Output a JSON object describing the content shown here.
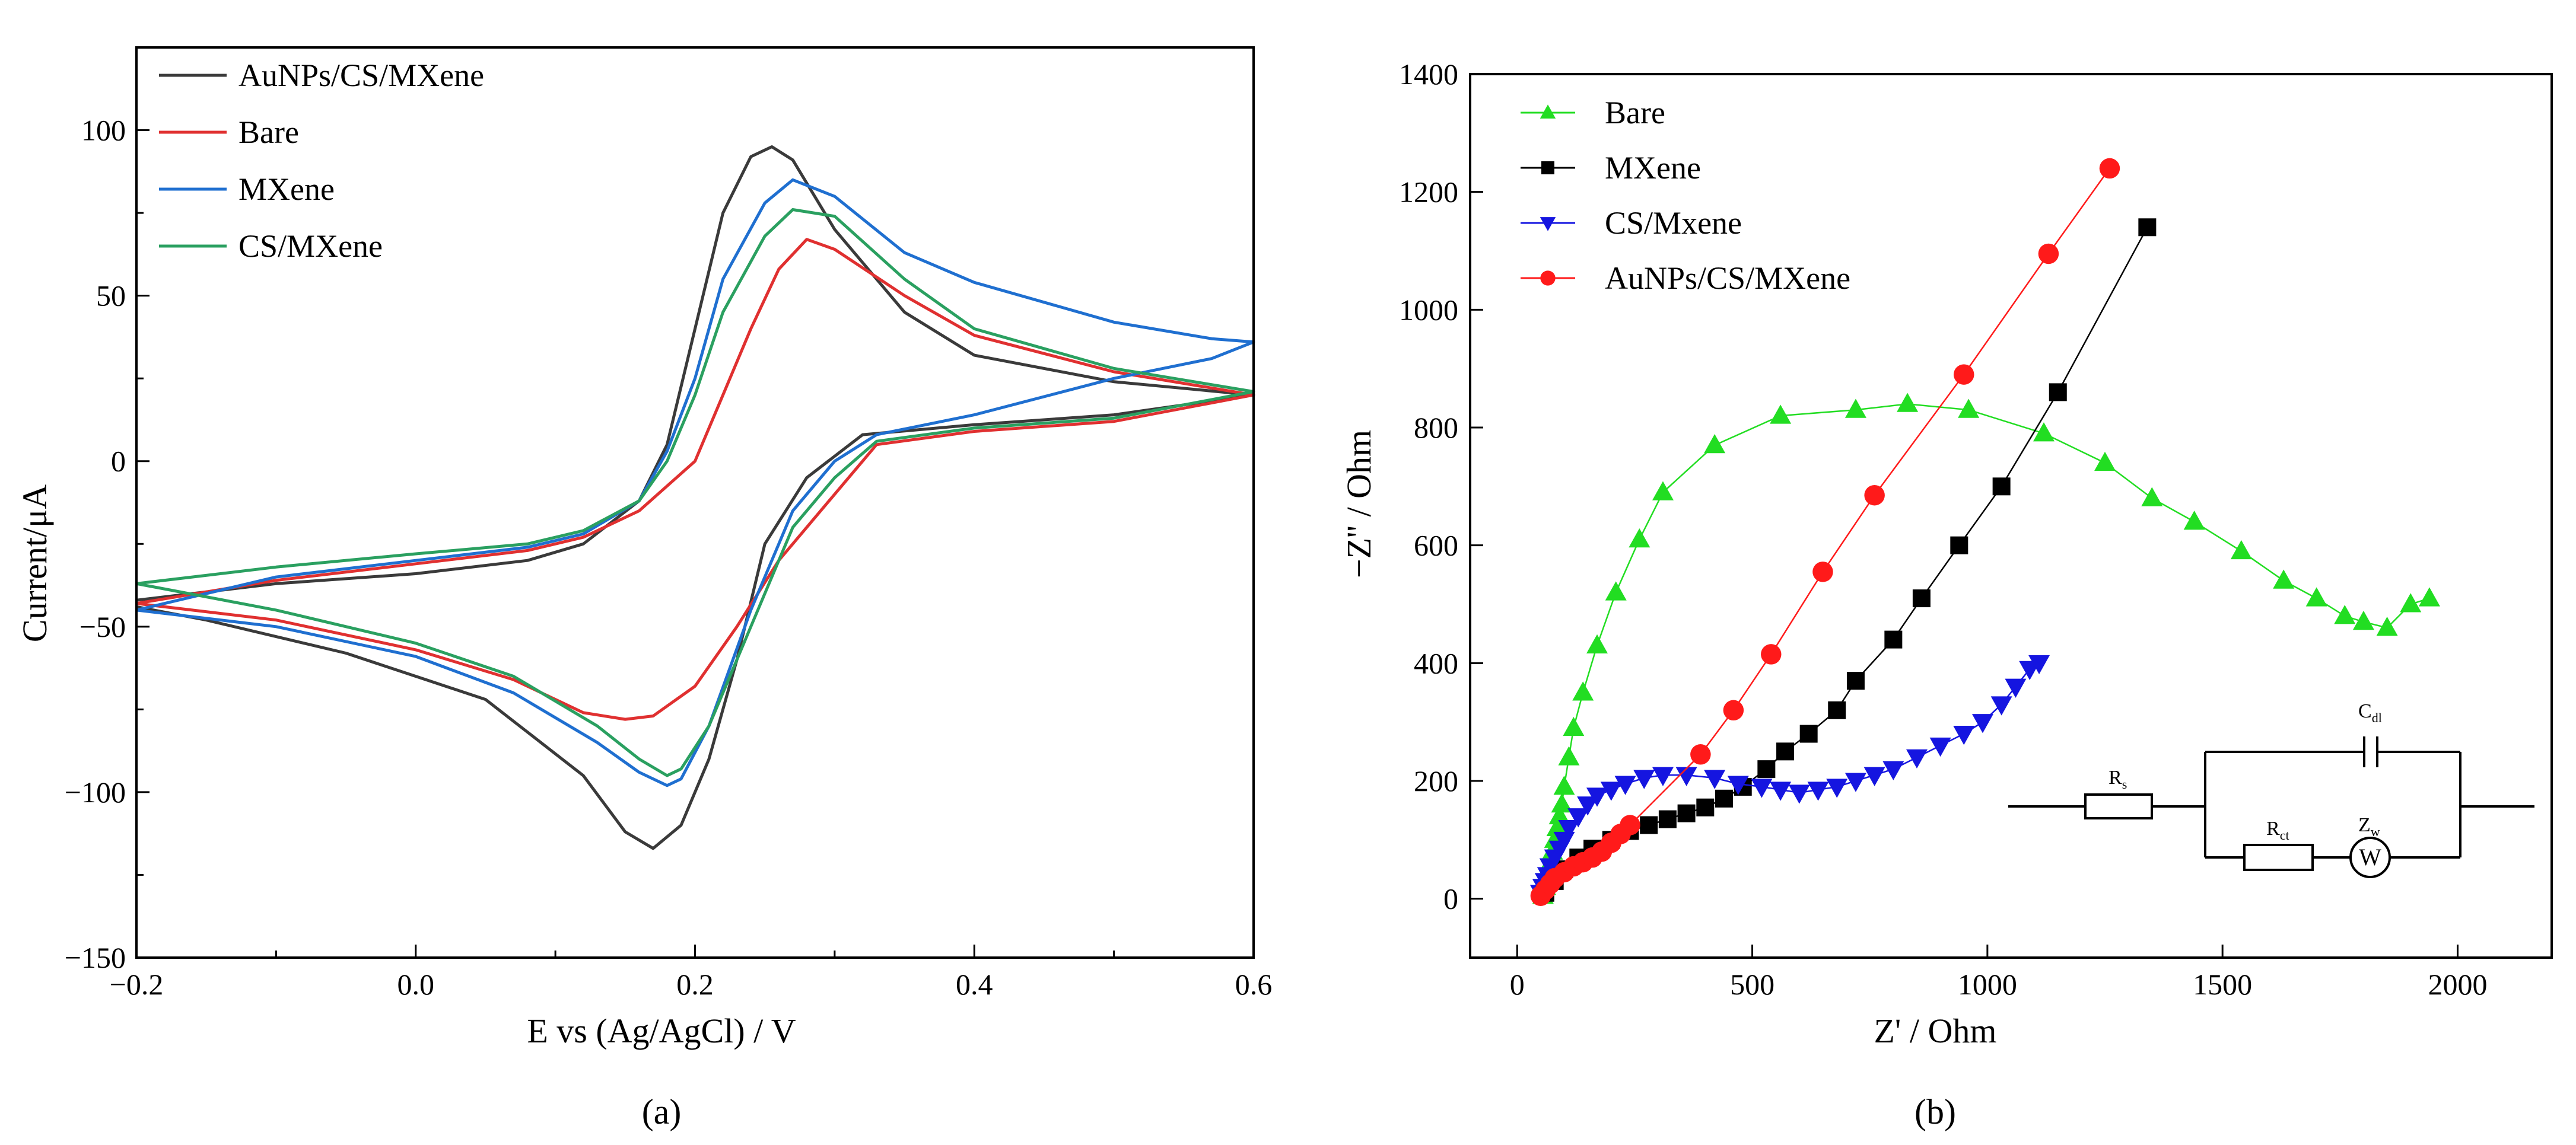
{
  "panel_labels": {
    "a": "(a)",
    "b": "(b)"
  },
  "chart_data": [
    {
      "type": "line",
      "title": "",
      "xlabel": "E vs (Ag/AgCl) / V",
      "ylabel": "Current/μA",
      "xlim": [
        -0.2,
        0.6
      ],
      "ylim": [
        -150,
        125
      ],
      "xticks": [
        -0.2,
        0.0,
        0.2,
        0.4,
        0.6
      ],
      "xtick_labels": [
        "−0.2",
        "0.0",
        "0.2",
        "0.4",
        "0.6"
      ],
      "yticks": [
        -150,
        -100,
        -50,
        0,
        50,
        100
      ],
      "ytick_labels": [
        "−150",
        "−100",
        "−50",
        "0",
        "50",
        "100"
      ],
      "legend_position": "top-left",
      "series": [
        {
          "name": "AuNPs/CS/MXene",
          "color": "#3a3a3a",
          "anodic": [
            [
              -0.2,
              -42
            ],
            [
              -0.1,
              -37
            ],
            [
              0.0,
              -34
            ],
            [
              0.08,
              -30
            ],
            [
              0.12,
              -25
            ],
            [
              0.16,
              -12
            ],
            [
              0.18,
              5
            ],
            [
              0.2,
              40
            ],
            [
              0.22,
              75
            ],
            [
              0.24,
              92
            ],
            [
              0.255,
              95
            ],
            [
              0.27,
              91
            ],
            [
              0.3,
              70
            ],
            [
              0.35,
              45
            ],
            [
              0.4,
              32
            ],
            [
              0.5,
              24
            ],
            [
              0.6,
              20
            ]
          ],
          "cathodic": [
            [
              0.6,
              20
            ],
            [
              0.5,
              14
            ],
            [
              0.4,
              11
            ],
            [
              0.32,
              8
            ],
            [
              0.28,
              -5
            ],
            [
              0.25,
              -25
            ],
            [
              0.23,
              -60
            ],
            [
              0.21,
              -90
            ],
            [
              0.19,
              -110
            ],
            [
              0.17,
              -117
            ],
            [
              0.15,
              -112
            ],
            [
              0.12,
              -95
            ],
            [
              0.05,
              -72
            ],
            [
              -0.05,
              -58
            ],
            [
              -0.15,
              -48
            ],
            [
              -0.2,
              -44
            ]
          ]
        },
        {
          "name": "Bare",
          "color": "#e03030",
          "anodic": [
            [
              -0.2,
              -43
            ],
            [
              -0.1,
              -36
            ],
            [
              0.0,
              -31
            ],
            [
              0.08,
              -27
            ],
            [
              0.12,
              -23
            ],
            [
              0.16,
              -15
            ],
            [
              0.2,
              0
            ],
            [
              0.22,
              20
            ],
            [
              0.24,
              40
            ],
            [
              0.26,
              58
            ],
            [
              0.28,
              67
            ],
            [
              0.3,
              64
            ],
            [
              0.35,
              50
            ],
            [
              0.4,
              38
            ],
            [
              0.5,
              27
            ],
            [
              0.6,
              20
            ]
          ],
          "cathodic": [
            [
              0.6,
              20
            ],
            [
              0.5,
              12
            ],
            [
              0.4,
              9
            ],
            [
              0.33,
              5
            ],
            [
              0.3,
              -10
            ],
            [
              0.26,
              -30
            ],
            [
              0.23,
              -50
            ],
            [
              0.2,
              -68
            ],
            [
              0.17,
              -77
            ],
            [
              0.15,
              -78
            ],
            [
              0.12,
              -76
            ],
            [
              0.07,
              -66
            ],
            [
              0.0,
              -57
            ],
            [
              -0.1,
              -48
            ],
            [
              -0.2,
              -43
            ]
          ]
        },
        {
          "name": "MXene",
          "color": "#1f6fd0",
          "anodic": [
            [
              -0.2,
              -45
            ],
            [
              -0.1,
              -35
            ],
            [
              0.0,
              -30
            ],
            [
              0.08,
              -26
            ],
            [
              0.12,
              -22
            ],
            [
              0.16,
              -12
            ],
            [
              0.18,
              3
            ],
            [
              0.2,
              25
            ],
            [
              0.22,
              55
            ],
            [
              0.25,
              78
            ],
            [
              0.27,
              85
            ],
            [
              0.3,
              80
            ],
            [
              0.35,
              63
            ],
            [
              0.4,
              54
            ],
            [
              0.5,
              42
            ],
            [
              0.57,
              37
            ],
            [
              0.6,
              36
            ]
          ],
          "cathodic": [
            [
              0.6,
              36
            ],
            [
              0.57,
              31
            ],
            [
              0.5,
              25
            ],
            [
              0.4,
              14
            ],
            [
              0.33,
              8
            ],
            [
              0.3,
              0
            ],
            [
              0.27,
              -15
            ],
            [
              0.24,
              -45
            ],
            [
              0.21,
              -80
            ],
            [
              0.19,
              -96
            ],
            [
              0.18,
              -98
            ],
            [
              0.16,
              -94
            ],
            [
              0.13,
              -85
            ],
            [
              0.07,
              -70
            ],
            [
              0.0,
              -59
            ],
            [
              -0.1,
              -50
            ],
            [
              -0.2,
              -45
            ]
          ]
        },
        {
          "name": "CS/MXene",
          "color": "#2aa060",
          "anodic": [
            [
              -0.2,
              -37
            ],
            [
              -0.1,
              -32
            ],
            [
              0.0,
              -28
            ],
            [
              0.08,
              -25
            ],
            [
              0.12,
              -21
            ],
            [
              0.16,
              -12
            ],
            [
              0.18,
              0
            ],
            [
              0.2,
              20
            ],
            [
              0.22,
              45
            ],
            [
              0.25,
              68
            ],
            [
              0.27,
              76
            ],
            [
              0.3,
              74
            ],
            [
              0.35,
              55
            ],
            [
              0.4,
              40
            ],
            [
              0.5,
              28
            ],
            [
              0.6,
              21
            ]
          ],
          "cathodic": [
            [
              0.6,
              21
            ],
            [
              0.5,
              13
            ],
            [
              0.4,
              10
            ],
            [
              0.33,
              6
            ],
            [
              0.3,
              -5
            ],
            [
              0.27,
              -20
            ],
            [
              0.24,
              -50
            ],
            [
              0.21,
              -80
            ],
            [
              0.19,
              -93
            ],
            [
              0.18,
              -95
            ],
            [
              0.16,
              -90
            ],
            [
              0.13,
              -80
            ],
            [
              0.07,
              -65
            ],
            [
              0.0,
              -55
            ],
            [
              -0.1,
              -45
            ],
            [
              -0.2,
              -37
            ]
          ]
        }
      ]
    },
    {
      "type": "scatter",
      "title": "",
      "xlabel": "Z' / Ohm",
      "ylabel": "−Z'' / Ohm",
      "xlim": [
        -100,
        2200
      ],
      "ylim": [
        -100,
        1400
      ],
      "xticks": [
        0,
        500,
        1000,
        1500,
        2000
      ],
      "xtick_labels": [
        "0",
        "500",
        "1000",
        "1500",
        "2000"
      ],
      "yticks": [
        0,
        200,
        400,
        600,
        800,
        1000,
        1200,
        1400
      ],
      "ytick_labels": [
        "0",
        "200",
        "400",
        "600",
        "800",
        "1000",
        "1200",
        "1400"
      ],
      "legend_position": "top-left",
      "series": [
        {
          "name": "Bare",
          "color": "#22dd22",
          "marker": "triangle-up",
          "points": [
            [
              55,
              5
            ],
            [
              60,
              20
            ],
            [
              65,
              40
            ],
            [
              70,
              60
            ],
            [
              75,
              80
            ],
            [
              80,
              100
            ],
            [
              85,
              120
            ],
            [
              90,
              140
            ],
            [
              95,
              160
            ],
            [
              100,
              190
            ],
            [
              110,
              240
            ],
            [
              120,
              290
            ],
            [
              140,
              350
            ],
            [
              170,
              430
            ],
            [
              210,
              520
            ],
            [
              260,
              610
            ],
            [
              310,
              690
            ],
            [
              420,
              770
            ],
            [
              560,
              820
            ],
            [
              720,
              830
            ],
            [
              830,
              840
            ],
            [
              960,
              830
            ],
            [
              1120,
              790
            ],
            [
              1250,
              740
            ],
            [
              1350,
              680
            ],
            [
              1440,
              640
            ],
            [
              1540,
              590
            ],
            [
              1630,
              540
            ],
            [
              1700,
              510
            ],
            [
              1760,
              480
            ],
            [
              1800,
              470
            ],
            [
              1850,
              460
            ],
            [
              1900,
              500
            ],
            [
              1940,
              510
            ]
          ]
        },
        {
          "name": "MXene",
          "color": "#000000",
          "marker": "square",
          "points": [
            [
              60,
              10
            ],
            [
              80,
              30
            ],
            [
              100,
              50
            ],
            [
              130,
              70
            ],
            [
              160,
              85
            ],
            [
              200,
              100
            ],
            [
              240,
              115
            ],
            [
              280,
              125
            ],
            [
              320,
              135
            ],
            [
              360,
              145
            ],
            [
              400,
              155
            ],
            [
              440,
              170
            ],
            [
              480,
              190
            ],
            [
              530,
              220
            ],
            [
              570,
              250
            ],
            [
              620,
              280
            ],
            [
              680,
              320
            ],
            [
              720,
              370
            ],
            [
              800,
              440
            ],
            [
              860,
              510
            ],
            [
              940,
              600
            ],
            [
              1030,
              700
            ],
            [
              1150,
              860
            ],
            [
              1340,
              1140
            ]
          ]
        },
        {
          "name": "CS/Mxene",
          "color": "#1515e0",
          "marker": "triangle-down",
          "points": [
            [
              50,
              10
            ],
            [
              55,
              20
            ],
            [
              60,
              30
            ],
            [
              65,
              40
            ],
            [
              70,
              55
            ],
            [
              80,
              70
            ],
            [
              90,
              85
            ],
            [
              100,
              100
            ],
            [
              110,
              120
            ],
            [
              130,
              140
            ],
            [
              150,
              160
            ],
            [
              170,
              175
            ],
            [
              200,
              185
            ],
            [
              230,
              195
            ],
            [
              270,
              205
            ],
            [
              310,
              210
            ],
            [
              360,
              210
            ],
            [
              420,
              205
            ],
            [
              470,
              195
            ],
            [
              520,
              190
            ],
            [
              560,
              185
            ],
            [
              600,
              180
            ],
            [
              640,
              185
            ],
            [
              680,
              190
            ],
            [
              720,
              200
            ],
            [
              760,
              210
            ],
            [
              800,
              220
            ],
            [
              850,
              240
            ],
            [
              900,
              260
            ],
            [
              950,
              280
            ],
            [
              990,
              300
            ],
            [
              1030,
              330
            ],
            [
              1060,
              360
            ],
            [
              1090,
              390
            ],
            [
              1110,
              400
            ]
          ]
        },
        {
          "name": "AuNPs/CS/MXene",
          "color": "#ff1a1a",
          "marker": "circle",
          "points": [
            [
              50,
              5
            ],
            [
              60,
              15
            ],
            [
              70,
              25
            ],
            [
              80,
              35
            ],
            [
              100,
              45
            ],
            [
              120,
              55
            ],
            [
              140,
              62
            ],
            [
              160,
              70
            ],
            [
              180,
              80
            ],
            [
              200,
              95
            ],
            [
              220,
              110
            ],
            [
              240,
              125
            ],
            [
              390,
              245
            ],
            [
              460,
              320
            ],
            [
              540,
              415
            ],
            [
              650,
              555
            ],
            [
              760,
              685
            ],
            [
              950,
              890
            ],
            [
              1130,
              1095
            ],
            [
              1260,
              1240
            ]
          ]
        }
      ]
    }
  ],
  "circuit": {
    "labels": {
      "rs": "R",
      "rs_sub": "s",
      "cdl": "C",
      "cdl_sub": "dl",
      "rct": "R",
      "rct_sub": "ct",
      "zw": "Z",
      "zw_sub": "w",
      "w_symbol": "W"
    }
  }
}
